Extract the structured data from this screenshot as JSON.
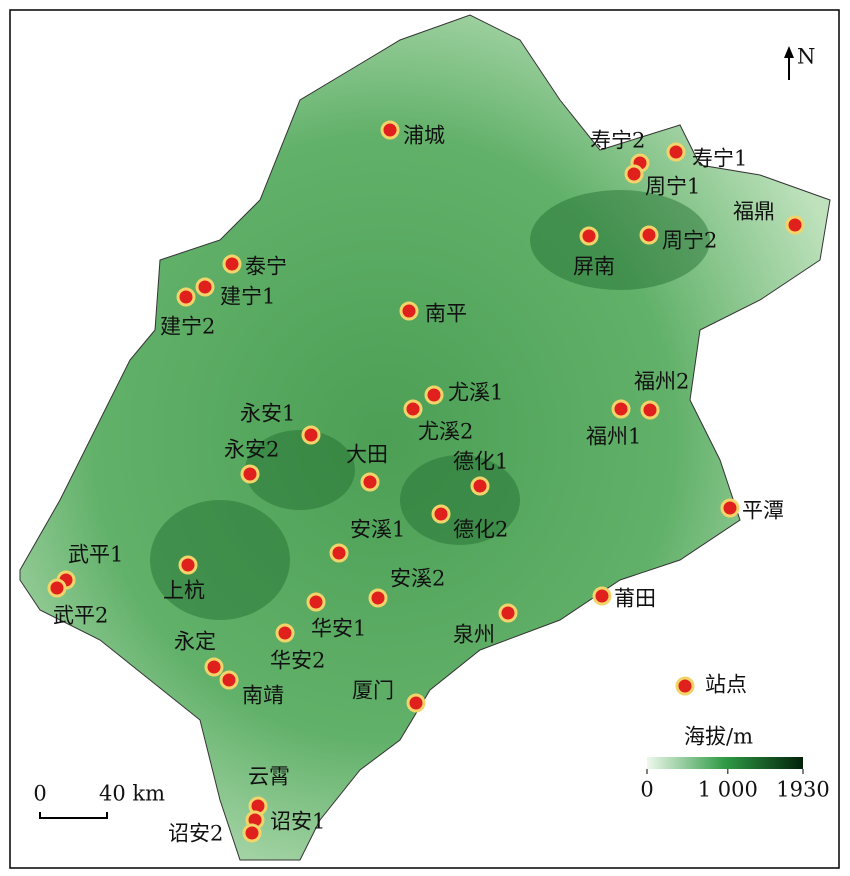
{
  "map": {
    "north": "N",
    "stations": [
      "浦城",
      "寿宁2",
      "寿宁1",
      "周宁1",
      "福鼎",
      "屏南",
      "周宁2",
      "泰宁",
      "建宁1",
      "建宁2",
      "南平",
      "尤溪1",
      "尤溪2",
      "福州2",
      "福州1",
      "永安1",
      "永安2",
      "大田",
      "德化1",
      "德化2",
      "平潭",
      "安溪1",
      "武平1",
      "武平2",
      "上杭",
      "安溪2",
      "莆田",
      "华安1",
      "泉州",
      "华安2",
      "永定",
      "南靖",
      "厦门",
      "云霄",
      "诏安1",
      "诏安2"
    ],
    "legend": {
      "station": "站点",
      "elevation_title": "海拔/m",
      "ticks": [
        0,
        {
          "value": 1000,
          "label": "1 000"
        },
        1930
      ]
    },
    "scale_bar": {
      "labels": [
        "0",
        "40 km"
      ]
    }
  }
}
